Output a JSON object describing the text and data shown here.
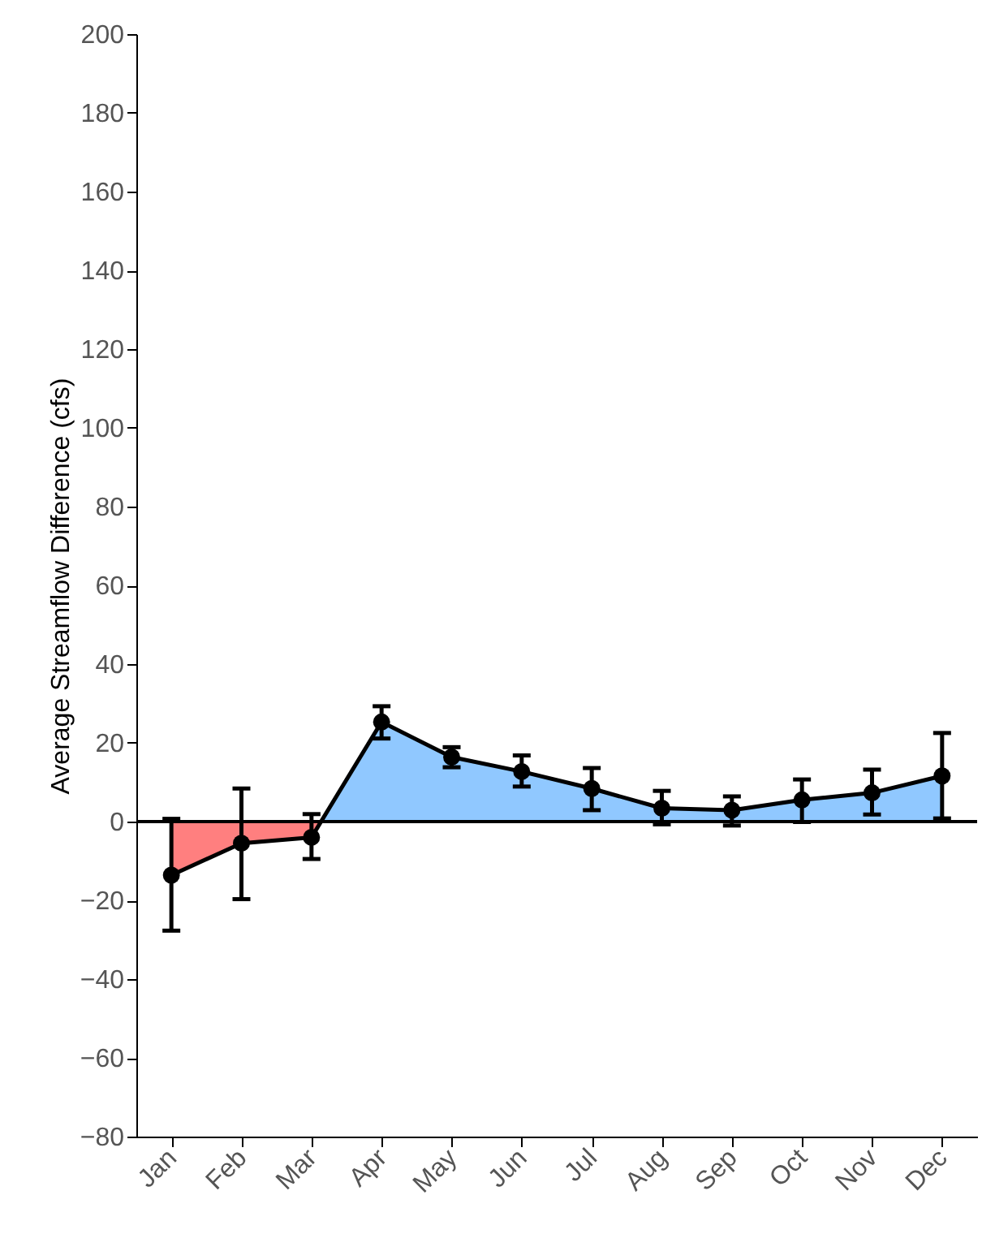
{
  "chart_data": {
    "type": "area",
    "ylabel": "Average Streamflow Difference (cfs)",
    "categories": [
      "Jan",
      "Feb",
      "Mar",
      "Apr",
      "May",
      "Jun",
      "Jul",
      "Aug",
      "Sep",
      "Oct",
      "Nov",
      "Dec"
    ],
    "series": [
      {
        "color": "#000000",
        "colors": [
          "#ff7f7f",
          "#ff7f7f",
          "#ff7f7f",
          "#90c8ff",
          "#90c8ff",
          "#90c8ff",
          "#90c8ff",
          "#90c8ff",
          "#90c8ff",
          "#90c8ff",
          "#90c8ff",
          "#90c8ff"
        ],
        "values": [
          -13.6,
          -5.5,
          -4.0,
          25.3,
          16.4,
          12.7,
          8.4,
          3.4,
          2.9,
          5.5,
          7.3,
          11.6
        ],
        "errors": [
          [
            -27.7,
            0.7
          ],
          [
            -19.7,
            8.4
          ],
          [
            -9.5,
            1.9
          ],
          [
            21.1,
            29.3
          ],
          [
            13.8,
            18.9
          ],
          [
            8.9,
            16.8
          ],
          [
            2.9,
            13.6
          ],
          [
            -0.7,
            7.8
          ],
          [
            -1.0,
            6.4
          ],
          [
            -0.1,
            10.7
          ],
          [
            1.8,
            13.2
          ],
          [
            0.8,
            22.5
          ]
        ]
      }
    ],
    "ylim": [
      -80,
      200
    ],
    "yticks": [
      {
        "value": -80,
        "label": "−80"
      },
      {
        "value": -60,
        "label": "−60"
      },
      {
        "value": -40,
        "label": "−40"
      },
      {
        "value": -20,
        "label": "−20"
      },
      0,
      20,
      40,
      60,
      80,
      100,
      120,
      140,
      160,
      180,
      200
    ],
    "ref_lines": [
      {
        "axis": "y",
        "value": 0,
        "color": "#000000"
      }
    ],
    "grid": false,
    "marker": "circle",
    "line_style": "solid"
  }
}
